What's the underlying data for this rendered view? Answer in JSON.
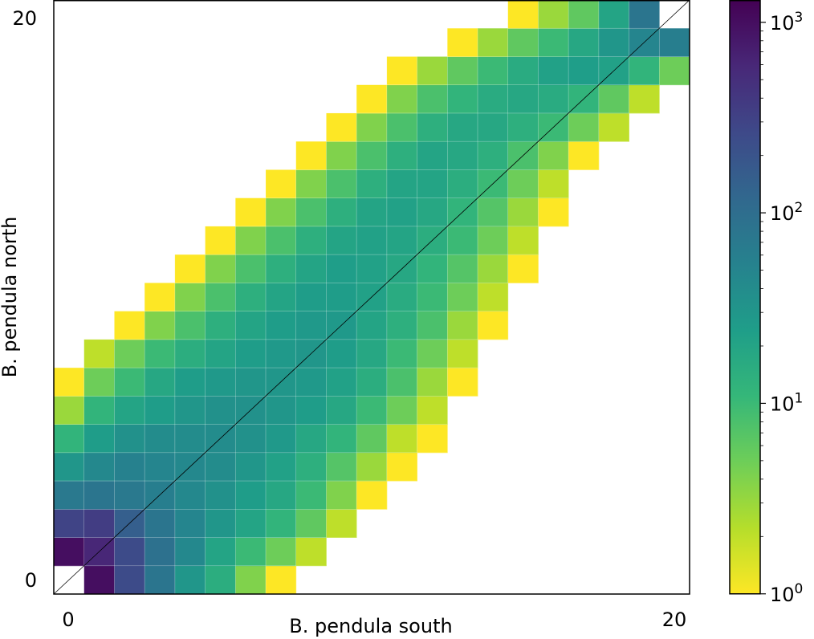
{
  "chart_data": {
    "type": "heatmap",
    "title": "",
    "xlabel": "B. pendula south",
    "ylabel": "B. pendula north",
    "x_tick_labels": [
      "0",
      "20"
    ],
    "y_tick_labels": [
      "0",
      "20"
    ],
    "x_range": [
      0,
      21
    ],
    "y_range": [
      0,
      21
    ],
    "bins": 21,
    "diagonal_line": true,
    "colorbar": {
      "scale": "log",
      "range": [
        1,
        1300
      ],
      "tick_labels": [
        {
          "base": "10",
          "exp": "0"
        },
        {
          "base": "10",
          "exp": "1"
        },
        {
          "base": "10",
          "exp": "2"
        },
        {
          "base": "10",
          "exp": "3"
        }
      ],
      "colormap": "viridis_r"
    },
    "counts": [
      [
        0,
        1000,
        250,
        80,
        30,
        15,
        4,
        1,
        0,
        0,
        0,
        0,
        0,
        0,
        0,
        0,
        0,
        0,
        0,
        0,
        0
      ],
      [
        1000,
        600,
        250,
        90,
        45,
        20,
        10,
        5,
        2,
        0,
        0,
        0,
        0,
        0,
        0,
        0,
        0,
        0,
        0,
        0,
        0
      ],
      [
        300,
        350,
        150,
        80,
        50,
        30,
        20,
        12,
        6,
        2,
        0,
        0,
        0,
        0,
        0,
        0,
        0,
        0,
        0,
        0,
        0
      ],
      [
        70,
        80,
        70,
        60,
        45,
        35,
        25,
        18,
        10,
        4,
        1,
        0,
        0,
        0,
        0,
        0,
        0,
        0,
        0,
        0,
        0
      ],
      [
        30,
        45,
        55,
        50,
        45,
        40,
        30,
        22,
        14,
        7,
        3,
        1,
        0,
        0,
        0,
        0,
        0,
        0,
        0,
        0,
        0
      ],
      [
        12,
        25,
        35,
        40,
        40,
        40,
        35,
        28,
        18,
        12,
        6,
        2,
        1,
        0,
        0,
        0,
        0,
        0,
        0,
        0,
        0
      ],
      [
        3,
        12,
        20,
        25,
        30,
        35,
        35,
        30,
        25,
        18,
        10,
        5,
        2,
        0,
        0,
        0,
        0,
        0,
        0,
        0,
        0
      ],
      [
        1,
        5,
        10,
        18,
        25,
        28,
        30,
        30,
        28,
        22,
        15,
        8,
        3,
        1,
        0,
        0,
        0,
        0,
        0,
        0,
        0
      ],
      [
        0,
        2,
        5,
        10,
        15,
        20,
        25,
        28,
        30,
        25,
        18,
        10,
        5,
        2,
        0,
        0,
        0,
        0,
        0,
        0,
        0
      ],
      [
        0,
        0,
        1,
        4,
        8,
        14,
        20,
        25,
        28,
        28,
        20,
        14,
        8,
        3,
        1,
        0,
        0,
        0,
        0,
        0,
        0
      ],
      [
        0,
        0,
        0,
        1,
        4,
        8,
        14,
        20,
        25,
        25,
        22,
        16,
        10,
        5,
        2,
        0,
        0,
        0,
        0,
        0,
        0
      ],
      [
        0,
        0,
        0,
        0,
        1,
        4,
        8,
        14,
        20,
        24,
        22,
        18,
        12,
        7,
        3,
        1,
        0,
        0,
        0,
        0,
        0
      ],
      [
        0,
        0,
        0,
        0,
        0,
        1,
        4,
        8,
        14,
        20,
        22,
        20,
        15,
        10,
        5,
        2,
        0,
        0,
        0,
        0,
        0
      ],
      [
        0,
        0,
        0,
        0,
        0,
        0,
        1,
        4,
        8,
        14,
        20,
        22,
        18,
        12,
        7,
        3,
        1,
        0,
        0,
        0,
        0
      ],
      [
        0,
        0,
        0,
        0,
        0,
        0,
        0,
        1,
        4,
        8,
        14,
        20,
        20,
        15,
        10,
        5,
        2,
        0,
        0,
        0,
        0
      ],
      [
        0,
        0,
        0,
        0,
        0,
        0,
        0,
        0,
        1,
        4,
        8,
        14,
        20,
        18,
        14,
        8,
        4,
        1,
        0,
        0,
        0
      ],
      [
        0,
        0,
        0,
        0,
        0,
        0,
        0,
        0,
        0,
        1,
        4,
        8,
        14,
        18,
        18,
        14,
        10,
        5,
        2,
        0,
        0
      ],
      [
        0,
        0,
        0,
        0,
        0,
        0,
        0,
        0,
        0,
        0,
        1,
        4,
        8,
        12,
        16,
        18,
        16,
        12,
        6,
        2,
        0
      ],
      [
        0,
        0,
        0,
        0,
        0,
        0,
        0,
        0,
        0,
        0,
        0,
        1,
        3,
        6,
        10,
        16,
        22,
        24,
        22,
        12,
        5
      ],
      [
        0,
        0,
        0,
        0,
        0,
        0,
        0,
        0,
        0,
        0,
        0,
        0,
        0,
        1,
        3,
        6,
        10,
        18,
        30,
        50,
        60
      ],
      [
        0,
        0,
        0,
        0,
        0,
        0,
        0,
        0,
        0,
        0,
        0,
        0,
        0,
        0,
        0,
        1,
        3,
        6,
        20,
        80,
        0
      ]
    ]
  }
}
